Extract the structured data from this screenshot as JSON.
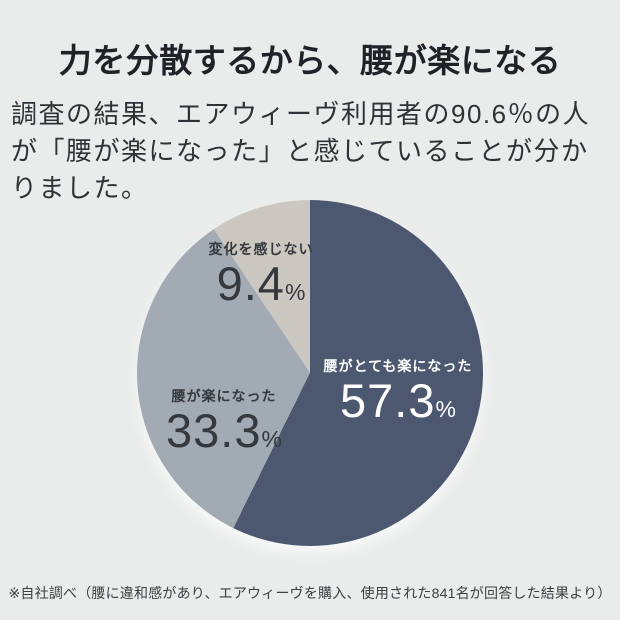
{
  "page": {
    "background_color": "#eaeceb"
  },
  "header": {
    "title": "力を分散するから、腰が楽になる"
  },
  "intro": {
    "text": "調査の結果、エアウィーヴ利用者の90.6％の人が「腰が楽になった」と感じていることが分かりました。"
  },
  "chart_data": {
    "type": "pie",
    "title": "",
    "start_angle_deg": 0,
    "direction": "clockwise",
    "total": 100,
    "slices": [
      {
        "label": "腰がとても楽になった",
        "value": 57.3,
        "display": "57.3",
        "unit": "%",
        "color": "#4c5870",
        "text_color": "#ffffff"
      },
      {
        "label": "腰が楽になった",
        "value": 33.3,
        "display": "33.3",
        "unit": "%",
        "color": "#a2aab3",
        "text_color": "#35383c"
      },
      {
        "label": "変化を感じない",
        "value": 9.4,
        "display": "9.4",
        "unit": "%",
        "color": "#cbc8c1",
        "text_color": "#35383c"
      }
    ]
  },
  "footnote": {
    "text": "※自社調べ（腰に違和感があり、エアウィーヴを購入、使用された841名が回答した結果より）"
  }
}
